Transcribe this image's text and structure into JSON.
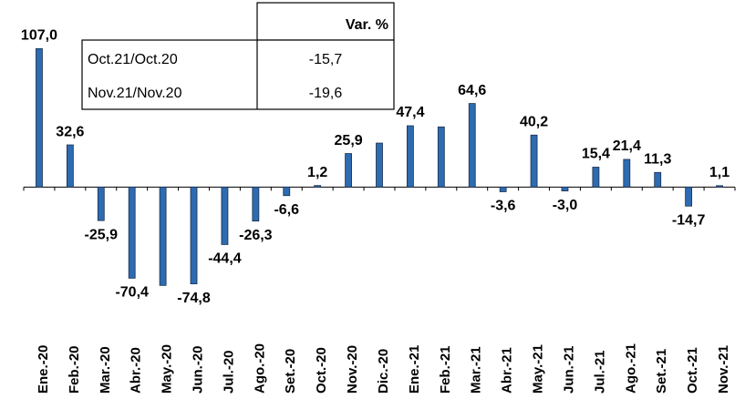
{
  "chart_data": {
    "type": "bar",
    "categories": [
      "Ene.-20",
      "Feb.-20",
      "Mar.-20",
      "Abr.-20",
      "May.-20",
      "Jun.-20",
      "Jul.-20",
      "Ago.-20",
      "Set.-20",
      "Oct.-20",
      "Nov.-20",
      "Dic.-20",
      "Ene.-21",
      "Feb.-21",
      "Mar.-21",
      "Abr.-21",
      "May.-21",
      "Jun.-21",
      "Jul.-21",
      "Ago.-21",
      "Set.-21",
      "Oct.-21",
      "Nov.-21"
    ],
    "values": [
      107.0,
      32.6,
      -25.9,
      -70.4,
      -76,
      -74.8,
      -44.4,
      -26.3,
      -6.6,
      1.2,
      25.9,
      34,
      47.4,
      46.5,
      64.6,
      -3.6,
      40.2,
      -3.0,
      15.4,
      21.4,
      11.3,
      -14.7,
      1.1
    ],
    "value_labels": [
      "107,0",
      "32,6",
      "-25,9",
      "-70,4",
      null,
      "-74,8",
      "-44,4",
      "-26,3",
      "-6,6",
      "1,2",
      "25,9",
      null,
      "47,4",
      null,
      "64,6",
      "-3,6",
      "40,2",
      "-3,0",
      "15,4",
      "21,4",
      "11,3",
      "-14,7",
      "1,1"
    ],
    "color": "#2e6bb0",
    "ylim": [
      -80,
      115
    ],
    "table": {
      "header": "Var. %",
      "rows": [
        [
          "Oct.21/Oct.20",
          "-15,7"
        ],
        [
          "Nov.21/Nov.20",
          "-19,6"
        ]
      ]
    }
  }
}
